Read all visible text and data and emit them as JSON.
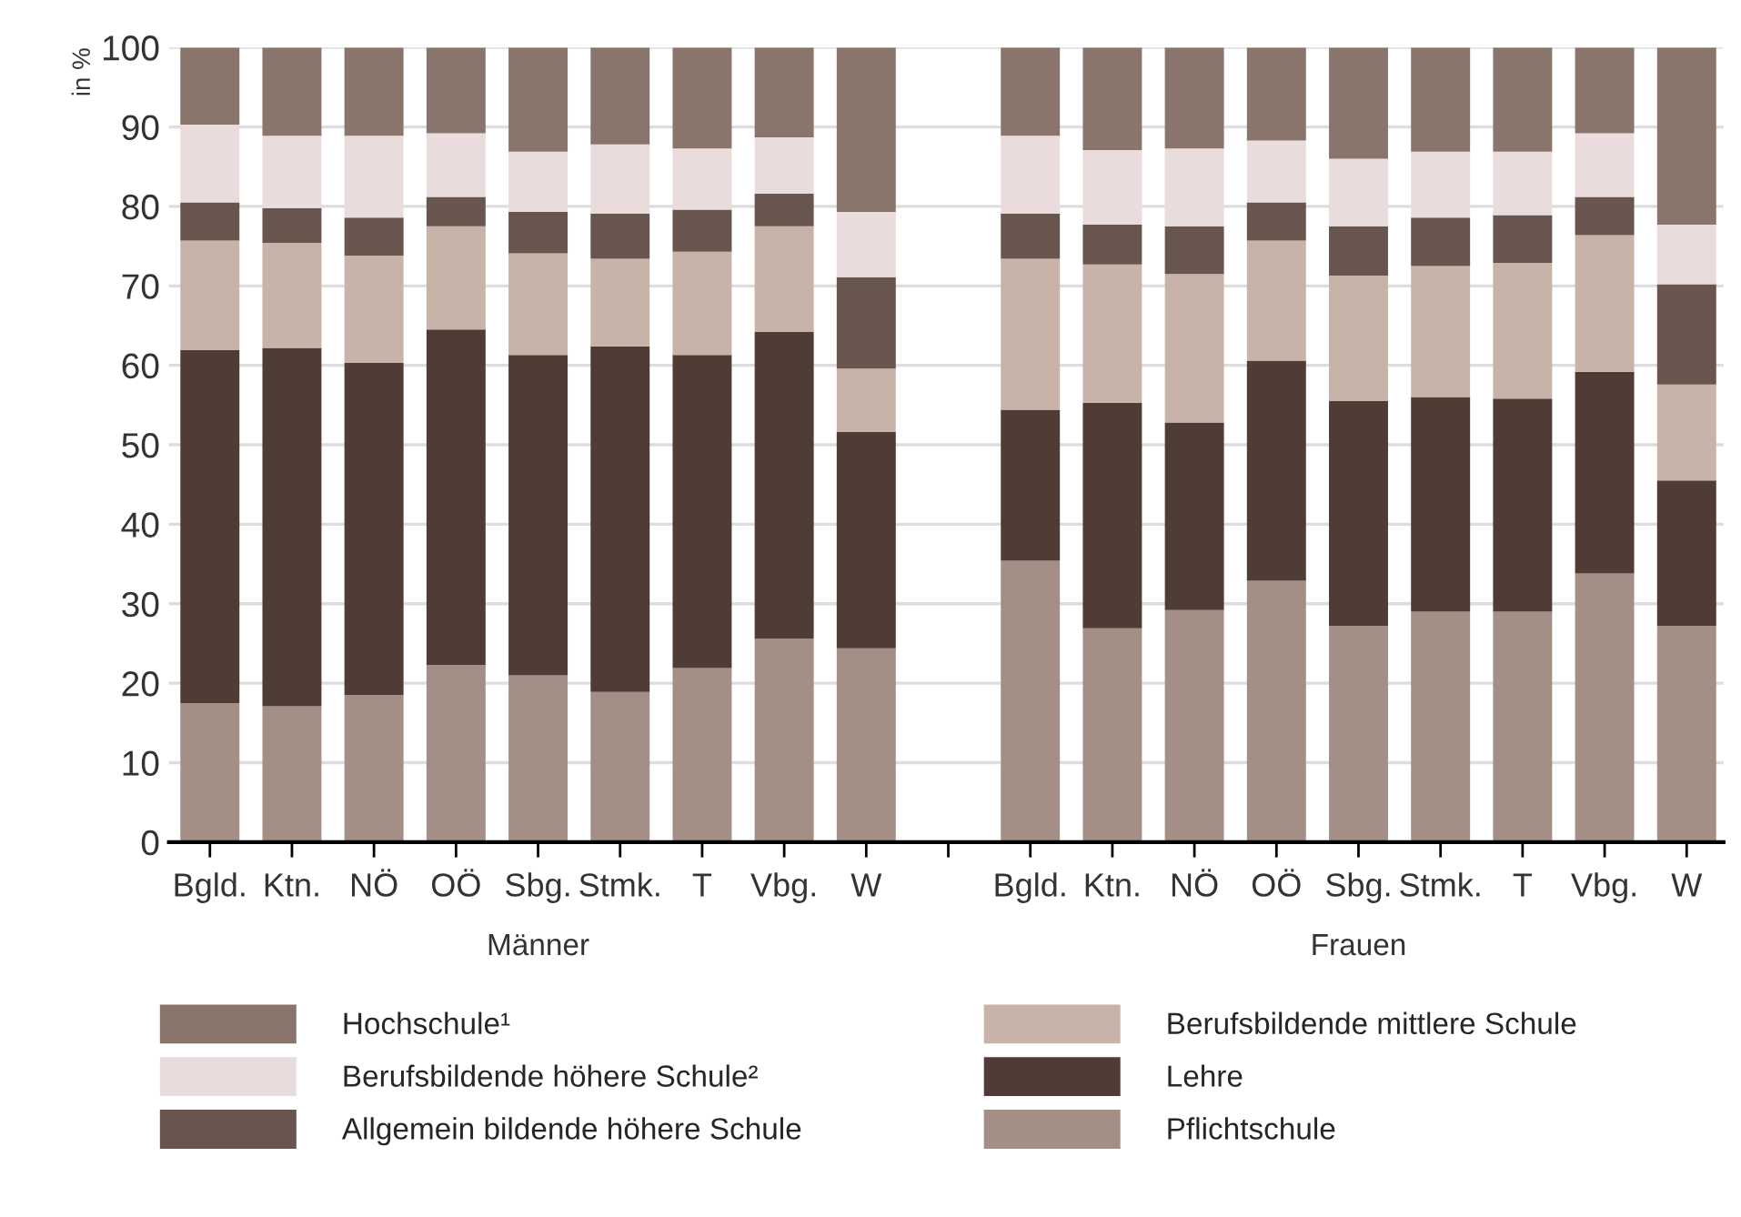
{
  "chart_data": {
    "type": "bar",
    "stacked": true,
    "ylabel": "in %",
    "categories": [
      "Bgld.",
      "Ktn.",
      "NÖ",
      "OÖ",
      "Sbg.",
      "Stmk.",
      "T",
      "Vbg.",
      "W",
      null,
      "Bgld.",
      "Ktn.",
      "NÖ",
      "OÖ",
      "Sbg.",
      "Stmk.",
      "T",
      "Vbg.",
      "W"
    ],
    "series": [
      {
        "name": "Pflichtschule",
        "color": "#a48f86",
        "values": [
          17.5,
          17.1,
          18.5,
          22.3,
          21.0,
          18.9,
          21.9,
          25.6,
          24.4,
          null,
          35.4,
          26.9,
          29.2,
          32.9,
          27.2,
          29.0,
          29.0,
          33.8,
          27.2
        ]
      },
      {
        "name": "Lehre",
        "color": "#4f3c34",
        "values": [
          44.4,
          45.1,
          41.8,
          42.2,
          40.3,
          43.5,
          39.4,
          38.6,
          27.2,
          null,
          19.0,
          28.4,
          23.6,
          27.7,
          28.3,
          27.0,
          26.8,
          25.4,
          18.3
        ]
      },
      {
        "name": "Berufsbildende mittlere Schule",
        "color": "#c8b3a8",
        "values": [
          13.8,
          13.2,
          13.5,
          13.0,
          12.8,
          11.0,
          13.0,
          13.3,
          8.0,
          null,
          19.0,
          17.4,
          18.7,
          15.1,
          15.8,
          16.5,
          17.1,
          17.2,
          12.1
        ]
      },
      {
        "name": "Allgemein bildende höhere Schule",
        "color": "#68554e",
        "values": [
          4.8,
          4.4,
          4.8,
          3.7,
          5.2,
          5.7,
          5.3,
          4.1,
          11.5,
          null,
          5.7,
          5.0,
          6.0,
          4.8,
          6.2,
          6.1,
          6.0,
          4.8,
          12.6
        ]
      },
      {
        "name": "Berufsbildende höhere Schule²",
        "color": "#eadcdc",
        "values": [
          9.8,
          9.1,
          10.3,
          8.0,
          7.6,
          8.7,
          7.7,
          7.1,
          8.2,
          null,
          9.8,
          9.4,
          9.8,
          7.8,
          8.5,
          8.3,
          8.0,
          8.0,
          7.5
        ]
      },
      {
        "name": "Hochschule¹",
        "color": "#89756c",
        "values": [
          9.7,
          11.1,
          11.1,
          10.8,
          13.1,
          12.2,
          12.7,
          11.3,
          20.7,
          null,
          11.1,
          12.9,
          12.7,
          11.7,
          14.0,
          13.1,
          13.1,
          10.8,
          22.3
        ]
      }
    ],
    "ylim": [
      0,
      100
    ],
    "yticks": [
      0,
      10,
      20,
      30,
      40,
      50,
      60,
      70,
      80,
      90,
      100
    ],
    "grid": "y",
    "legend": "bottom",
    "annotations": [
      "Männer",
      "Frauen"
    ]
  }
}
